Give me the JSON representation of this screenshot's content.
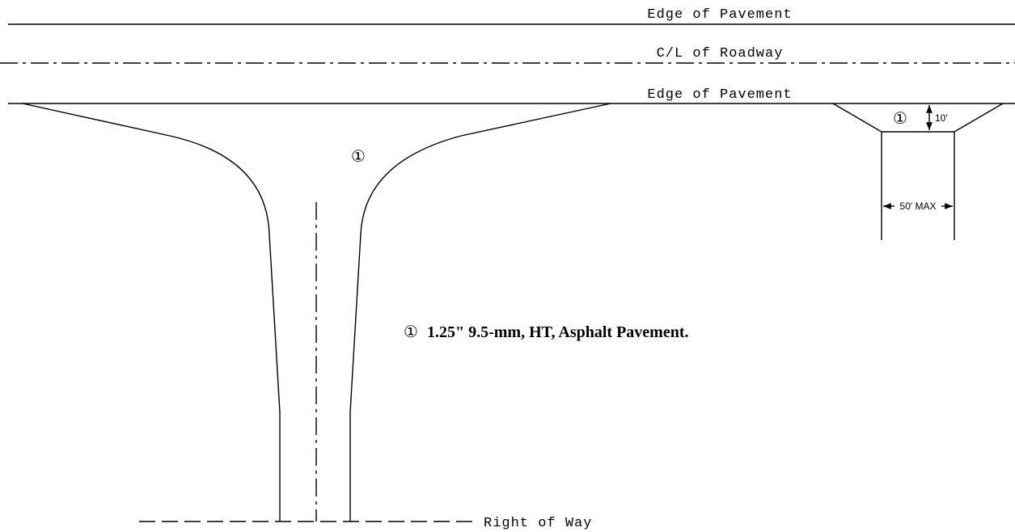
{
  "labels": {
    "edge_top": "Edge of Pavement",
    "centerline": "C/L of Roadway",
    "edge_bottom": "Edge of Pavement",
    "right_of_way": "Right of Way"
  },
  "callouts": {
    "main": "①",
    "detail": "①",
    "detail_depth": "10′",
    "detail_width": "50′ MAX"
  },
  "note": {
    "marker": "①",
    "text": "1.25\" 9.5-mm, HT, Asphalt Pavement."
  }
}
